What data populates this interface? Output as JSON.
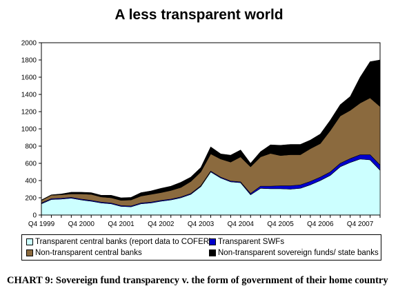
{
  "chart_data": {
    "type": "area",
    "title": "A less transparent world",
    "stacked": true,
    "ylim": [
      0,
      2000
    ],
    "yticks": [
      0,
      200,
      400,
      600,
      800,
      1000,
      1200,
      1400,
      1600,
      1800,
      2000
    ],
    "x_labels": [
      "Q4 1999",
      "Q4 2000",
      "Q4 2001",
      "Q4 2002",
      "Q4 2003",
      "Q4 2004",
      "Q4 2005",
      "Q4 2006",
      "Q4 2007"
    ],
    "x_label_positions": [
      0,
      4,
      8,
      12,
      16,
      20,
      24,
      28,
      32
    ],
    "grid": false,
    "legend_position": "bottom",
    "series": [
      {
        "name": "Transparent central banks (report data to COFER)",
        "color": "#ccffff",
        "values": [
          130,
          180,
          185,
          195,
          175,
          160,
          140,
          130,
          100,
          95,
          130,
          140,
          160,
          175,
          200,
          240,
          330,
          500,
          430,
          385,
          375,
          235,
          310,
          305,
          305,
          300,
          310,
          350,
          400,
          460,
          560,
          610,
          650,
          640,
          520
        ]
      },
      {
        "name": "Transparent SWFs",
        "color": "#0000cc",
        "values": [
          10,
          10,
          10,
          10,
          10,
          10,
          10,
          10,
          10,
          10,
          10,
          10,
          10,
          10,
          10,
          10,
          10,
          10,
          10,
          10,
          10,
          15,
          25,
          30,
          35,
          40,
          40,
          40,
          40,
          40,
          40,
          45,
          50,
          60,
          60
        ]
      },
      {
        "name": "Non-transparent central banks",
        "color": "#8b6a3e",
        "values": [
          30,
          40,
          40,
          40,
          60,
          70,
          60,
          60,
          60,
          70,
          80,
          90,
          90,
          100,
          110,
          140,
          160,
          200,
          210,
          220,
          290,
          310,
          340,
          380,
          350,
          360,
          350,
          380,
          390,
          480,
          550,
          560,
          600,
          660,
          680
        ]
      },
      {
        "name": "Non-transparent sovereign funds/ state banks",
        "color": "#000000",
        "values": [
          5,
          5,
          10,
          20,
          20,
          20,
          20,
          30,
          30,
          30,
          40,
          40,
          50,
          50,
          60,
          50,
          50,
          80,
          60,
          80,
          80,
          40,
          60,
          100,
          120,
          120,
          120,
          100,
          110,
          120,
          130,
          160,
          300,
          420,
          540
        ]
      }
    ]
  },
  "caption": "CHART 9: Sovereign fund transparency v. the form of government of their home country"
}
